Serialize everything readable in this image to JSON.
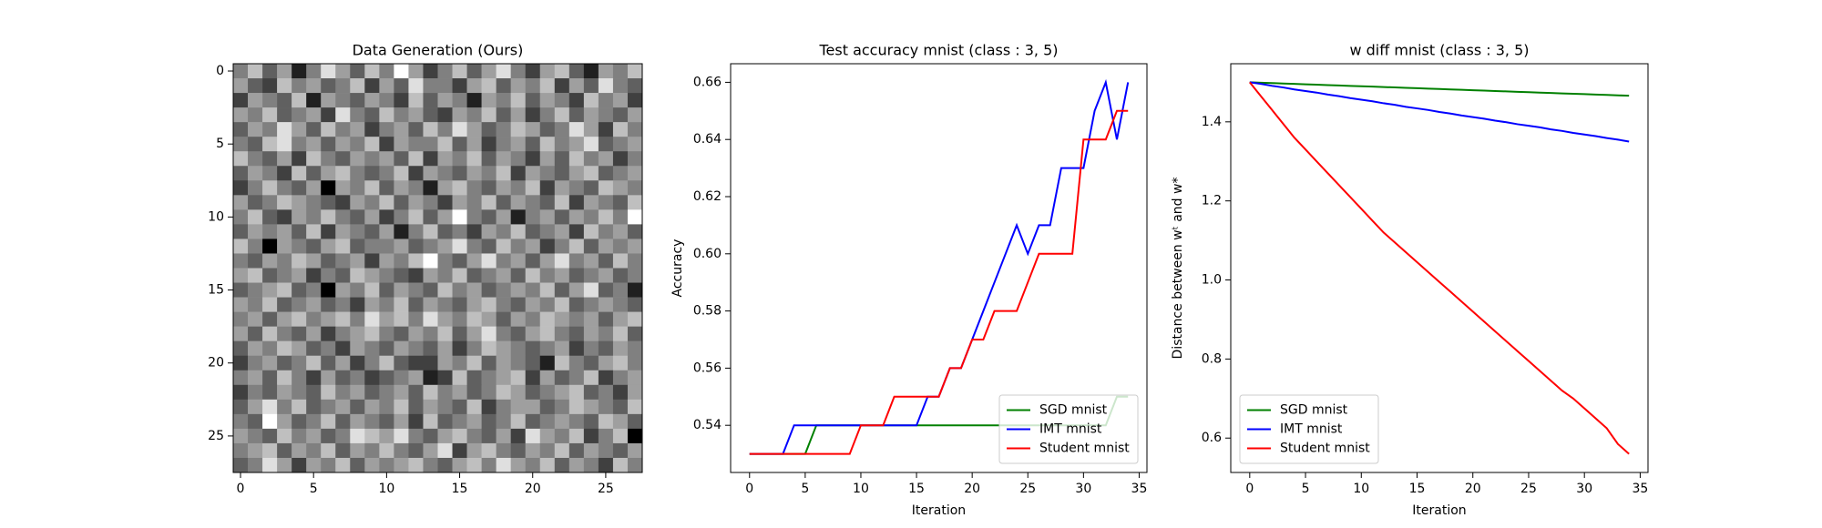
{
  "chart_data": [
    {
      "type": "heatmap",
      "title": "Data Generation (Ours)",
      "colormap": "gray",
      "xlim": [
        -0.5,
        27.5
      ],
      "ylim": [
        27.5,
        -0.5
      ],
      "xticks": [
        0,
        5,
        10,
        15,
        20,
        25
      ],
      "yticks": [
        0,
        5,
        10,
        15,
        20,
        25
      ],
      "z": [
        [
          5,
          7,
          4,
          6,
          2,
          5,
          8,
          6,
          4,
          7,
          5,
          9,
          6,
          3,
          5,
          7,
          4,
          6,
          8,
          5,
          3,
          6,
          7,
          4,
          2,
          6,
          5,
          7
        ],
        [
          6,
          4,
          3,
          7,
          5,
          6,
          4,
          5,
          7,
          3,
          6,
          4,
          8,
          5,
          5,
          3,
          6,
          7,
          4,
          6,
          5,
          7,
          3,
          6,
          4,
          8,
          5,
          4
        ],
        [
          3,
          6,
          5,
          4,
          7,
          2,
          6,
          5,
          4,
          6,
          5,
          3,
          7,
          4,
          6,
          5,
          2,
          6,
          5,
          7,
          4,
          6,
          5,
          3,
          7,
          5,
          6,
          3
        ],
        [
          6,
          5,
          7,
          4,
          5,
          6,
          3,
          8,
          5,
          4,
          7,
          5,
          6,
          4,
          3,
          6,
          5,
          7,
          4,
          6,
          3,
          5,
          7,
          4,
          6,
          5,
          4,
          6
        ],
        [
          4,
          6,
          5,
          8,
          6,
          4,
          7,
          5,
          6,
          3,
          5,
          6,
          4,
          7,
          5,
          8,
          6,
          4,
          5,
          7,
          6,
          4,
          5,
          8,
          6,
          3,
          7,
          5
        ],
        [
          5,
          4,
          7,
          8,
          5,
          6,
          4,
          6,
          5,
          7,
          3,
          6,
          5,
          5,
          7,
          4,
          6,
          3,
          5,
          6,
          4,
          7,
          5,
          6,
          8,
          4,
          5,
          6
        ],
        [
          7,
          5,
          4,
          6,
          3,
          7,
          5,
          4,
          6,
          5,
          6,
          4,
          7,
          3,
          6,
          5,
          7,
          4,
          6,
          5,
          3,
          6,
          4,
          7,
          5,
          6,
          3,
          5
        ],
        [
          4,
          6,
          5,
          3,
          7,
          4,
          6,
          7,
          5,
          4,
          5,
          7,
          3,
          6,
          5,
          4,
          6,
          5,
          7,
          3,
          6,
          5,
          4,
          6,
          7,
          4,
          5,
          6
        ],
        [
          3,
          5,
          7,
          5,
          4,
          6,
          1,
          6,
          5,
          7,
          4,
          6,
          5,
          2,
          6,
          7,
          5,
          4,
          6,
          5,
          7,
          3,
          6,
          5,
          4,
          7,
          6,
          5
        ],
        [
          6,
          4,
          5,
          7,
          6,
          5,
          4,
          3,
          6,
          5,
          7,
          4,
          6,
          5,
          3,
          6,
          5,
          7,
          4,
          6,
          5,
          4,
          7,
          3,
          6,
          5,
          4,
          7
        ],
        [
          5,
          7,
          4,
          3,
          6,
          5,
          7,
          5,
          4,
          6,
          3,
          5,
          7,
          4,
          6,
          9,
          5,
          4,
          6,
          2,
          5,
          6,
          4,
          6,
          5,
          7,
          5,
          9
        ],
        [
          4,
          6,
          5,
          6,
          4,
          7,
          3,
          6,
          5,
          4,
          6,
          2,
          5,
          7,
          4,
          5,
          3,
          6,
          5,
          7,
          4,
          5,
          6,
          3,
          7,
          5,
          6,
          4
        ],
        [
          7,
          5,
          1,
          6,
          5,
          4,
          6,
          7,
          4,
          5,
          5,
          6,
          4,
          5,
          6,
          8,
          5,
          4,
          7,
          5,
          6,
          3,
          5,
          7,
          4,
          6,
          5,
          6
        ],
        [
          5,
          4,
          6,
          5,
          7,
          6,
          4,
          5,
          6,
          3,
          6,
          5,
          7,
          9,
          5,
          4,
          6,
          8,
          5,
          6,
          4,
          6,
          8,
          5,
          6,
          4,
          7,
          5
        ],
        [
          6,
          7,
          4,
          5,
          6,
          3,
          5,
          4,
          7,
          6,
          5,
          4,
          3,
          6,
          5,
          7,
          4,
          5,
          6,
          4,
          7,
          5,
          6,
          4,
          5,
          6,
          4,
          5
        ],
        [
          4,
          5,
          6,
          7,
          4,
          5,
          1,
          6,
          5,
          7,
          4,
          6,
          5,
          4,
          7,
          5,
          6,
          4,
          5,
          6,
          5,
          7,
          4,
          6,
          8,
          4,
          5,
          2
        ],
        [
          6,
          5,
          7,
          4,
          5,
          6,
          4,
          5,
          3,
          6,
          5,
          7,
          4,
          6,
          5,
          4,
          6,
          7,
          5,
          4,
          6,
          5,
          7,
          4,
          5,
          6,
          5,
          4
        ],
        [
          5,
          6,
          4,
          6,
          7,
          5,
          6,
          7,
          5,
          8,
          6,
          7,
          5,
          8,
          6,
          5,
          7,
          6,
          4,
          6,
          5,
          7,
          6,
          5,
          6,
          4,
          6,
          7
        ],
        [
          6,
          4,
          7,
          5,
          4,
          6,
          3,
          5,
          6,
          7,
          5,
          4,
          6,
          5,
          7,
          4,
          6,
          8,
          5,
          4,
          6,
          7,
          5,
          4,
          6,
          5,
          7,
          4
        ],
        [
          4,
          6,
          5,
          7,
          6,
          4,
          5,
          3,
          6,
          5,
          4,
          6,
          5,
          4,
          6,
          3,
          5,
          7,
          6,
          5,
          4,
          5,
          6,
          3,
          5,
          4,
          6,
          5
        ],
        [
          3,
          5,
          6,
          4,
          5,
          7,
          4,
          6,
          3,
          5,
          7,
          4,
          3,
          3,
          6,
          5,
          7,
          4,
          6,
          5,
          4,
          2,
          7,
          5,
          4,
          6,
          7,
          5
        ],
        [
          5,
          6,
          4,
          7,
          5,
          3,
          6,
          4,
          5,
          3,
          4,
          5,
          6,
          2,
          3,
          7,
          4,
          5,
          6,
          7,
          3,
          6,
          4,
          5,
          7,
          3,
          5,
          6
        ],
        [
          3,
          5,
          4,
          6,
          5,
          4,
          7,
          5,
          6,
          4,
          5,
          6,
          4,
          7,
          5,
          6,
          4,
          5,
          7,
          6,
          4,
          5,
          6,
          7,
          4,
          5,
          3,
          6
        ],
        [
          4,
          6,
          8,
          5,
          7,
          4,
          5,
          6,
          4,
          6,
          5,
          7,
          4,
          6,
          5,
          4,
          7,
          3,
          5,
          6,
          6,
          4,
          5,
          7,
          6,
          5,
          4,
          7
        ],
        [
          5,
          4,
          9,
          6,
          4,
          5,
          7,
          4,
          6,
          5,
          4,
          6,
          3,
          7,
          4,
          5,
          6,
          4,
          5,
          7,
          4,
          5,
          6,
          5,
          4,
          7,
          6,
          4
        ],
        [
          6,
          5,
          4,
          7,
          5,
          6,
          4,
          5,
          8,
          7,
          6,
          8,
          5,
          4,
          6,
          7,
          5,
          4,
          6,
          3,
          8,
          6,
          5,
          7,
          3,
          5,
          7,
          1
        ],
        [
          5,
          6,
          7,
          4,
          6,
          5,
          7,
          4,
          6,
          5,
          7,
          5,
          4,
          6,
          8,
          3,
          6,
          7,
          5,
          4,
          6,
          5,
          7,
          4,
          6,
          5,
          4,
          6
        ],
        [
          4,
          5,
          8,
          6,
          3,
          6,
          5,
          7,
          4,
          6,
          5,
          6,
          7,
          5,
          4,
          6,
          7,
          5,
          8,
          6,
          5,
          7,
          4,
          6,
          5,
          3,
          7,
          5
        ]
      ]
    },
    {
      "type": "line",
      "title": "Test accuracy mnist (class : 3, 5)",
      "x_label": "Iteration",
      "y_label": "Accuracy",
      "legend": "lower right",
      "x": [
        0,
        1,
        2,
        3,
        4,
        5,
        6,
        7,
        8,
        9,
        10,
        11,
        12,
        13,
        14,
        15,
        16,
        17,
        18,
        19,
        20,
        21,
        22,
        23,
        24,
        25,
        26,
        27,
        28,
        29,
        30,
        31,
        32,
        33,
        34
      ],
      "xlim": [
        -1.7,
        35.7
      ],
      "ylim": [
        0.5235,
        0.6665
      ],
      "xticks": [
        0,
        5,
        10,
        15,
        20,
        25,
        30,
        35
      ],
      "yticks": [
        0.54,
        0.56,
        0.58,
        {
          "value": 0.6,
          "label": "0.60"
        },
        0.62,
        0.64,
        0.66
      ],
      "series": [
        {
          "name": "SGD mnist",
          "color": "#008000",
          "values": [
            0.53,
            0.53,
            0.53,
            0.53,
            0.53,
            0.53,
            0.54,
            0.54,
            0.54,
            0.54,
            0.54,
            0.54,
            0.54,
            0.54,
            0.54,
            0.54,
            0.54,
            0.54,
            0.54,
            0.54,
            0.54,
            0.54,
            0.54,
            0.54,
            0.54,
            0.54,
            0.54,
            0.54,
            0.54,
            0.54,
            0.54,
            0.54,
            0.54,
            0.55,
            0.55
          ]
        },
        {
          "name": "IMT mnist",
          "color": "#0000ff",
          "values": [
            0.53,
            0.53,
            0.53,
            0.53,
            0.54,
            0.54,
            0.54,
            0.54,
            0.54,
            0.54,
            0.54,
            0.54,
            0.54,
            0.54,
            0.54,
            0.54,
            0.55,
            0.55,
            0.56,
            0.56,
            0.57,
            0.58,
            0.59,
            0.6,
            0.61,
            0.6,
            0.61,
            0.61,
            0.63,
            0.63,
            0.63,
            0.65,
            0.66,
            0.64,
            0.66
          ]
        },
        {
          "name": "Student mnist",
          "color": "#ff0000",
          "values": [
            0.53,
            0.53,
            0.53,
            0.53,
            0.53,
            0.53,
            0.53,
            0.53,
            0.53,
            0.53,
            0.54,
            0.54,
            0.54,
            0.55,
            0.55,
            0.55,
            0.55,
            0.55,
            0.56,
            0.56,
            0.57,
            0.57,
            0.58,
            0.58,
            0.58,
            0.59,
            0.6,
            0.6,
            0.6,
            0.6,
            0.64,
            0.64,
            0.64,
            0.65,
            0.65
          ]
        }
      ]
    },
    {
      "type": "line",
      "title": "w diff mnist (class : 3, 5)",
      "x_label": "Iteration",
      "y_label": "Distance between wᵗ and w*",
      "legend": "lower left",
      "x": [
        0,
        1,
        2,
        3,
        4,
        5,
        6,
        7,
        8,
        9,
        10,
        11,
        12,
        13,
        14,
        15,
        16,
        17,
        18,
        19,
        20,
        21,
        22,
        23,
        24,
        25,
        26,
        27,
        28,
        29,
        30,
        31,
        32,
        33,
        34
      ],
      "xlim": [
        -1.7,
        35.7
      ],
      "ylim": [
        0.513,
        1.547
      ],
      "xticks": [
        0,
        5,
        10,
        15,
        20,
        25,
        30,
        35
      ],
      "yticks": [
        0.6,
        0.8,
        {
          "value": 1.0,
          "label": "1.0"
        },
        1.2,
        1.4
      ],
      "series": [
        {
          "name": "SGD mnist",
          "color": "#008000",
          "values": [
            1.5,
            1.499,
            1.498,
            1.497,
            1.496,
            1.495,
            1.494,
            1.493,
            1.492,
            1.491,
            1.49,
            1.489,
            1.488,
            1.487,
            1.486,
            1.485,
            1.484,
            1.483,
            1.482,
            1.481,
            1.48,
            1.479,
            1.478,
            1.477,
            1.476,
            1.475,
            1.474,
            1.473,
            1.472,
            1.471,
            1.47,
            1.469,
            1.468,
            1.467,
            1.466
          ]
        },
        {
          "name": "IMT mnist",
          "color": "#0000ff",
          "values": [
            1.5,
            1.496,
            1.491,
            1.487,
            1.482,
            1.478,
            1.474,
            1.469,
            1.465,
            1.46,
            1.456,
            1.452,
            1.447,
            1.443,
            1.438,
            1.434,
            1.43,
            1.425,
            1.421,
            1.416,
            1.412,
            1.408,
            1.403,
            1.399,
            1.394,
            1.39,
            1.386,
            1.381,
            1.377,
            1.372,
            1.368,
            1.364,
            1.359,
            1.355,
            1.35
          ]
        },
        {
          "name": "Student mnist",
          "color": "#ff0000",
          "values": [
            1.5,
            1.465,
            1.43,
            1.395,
            1.36,
            1.33,
            1.3,
            1.27,
            1.24,
            1.21,
            1.18,
            1.15,
            1.12,
            1.095,
            1.07,
            1.045,
            1.02,
            0.995,
            0.97,
            0.945,
            0.92,
            0.895,
            0.87,
            0.845,
            0.82,
            0.795,
            0.77,
            0.745,
            0.72,
            0.7,
            0.675,
            0.65,
            0.625,
            0.585,
            0.56
          ]
        }
      ]
    }
  ]
}
